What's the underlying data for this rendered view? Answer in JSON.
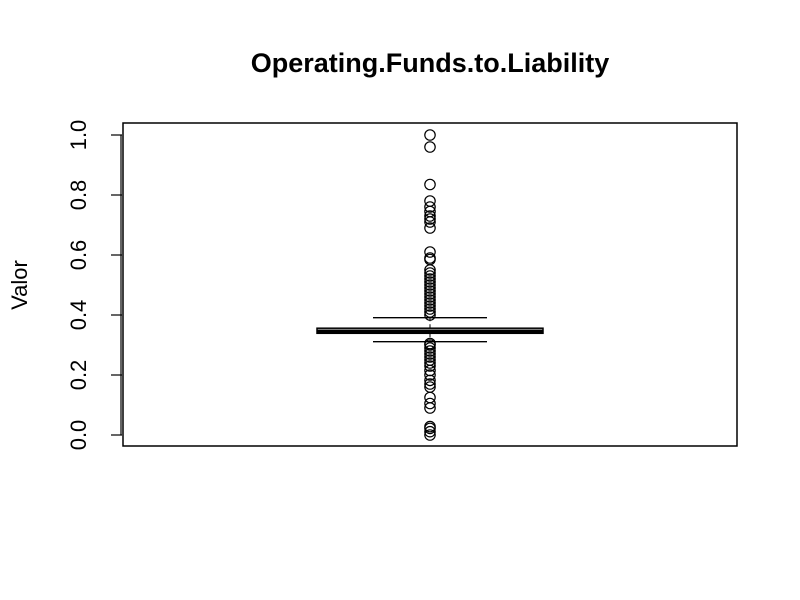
{
  "chart_data": {
    "type": "boxplot",
    "title": "Operating.Funds.to.Liability",
    "xlabel": "",
    "ylabel": "Valor",
    "ylim": [
      0,
      1
    ],
    "y_ticks": [
      "0.0",
      "0.2",
      "0.4",
      "0.6",
      "0.8",
      "1.0"
    ],
    "y_tick_values": [
      0.0,
      0.2,
      0.4,
      0.6,
      0.8,
      1.0
    ],
    "grid": false,
    "box": {
      "whisker_low": 0.311,
      "q1": 0.339,
      "median": 0.345,
      "q3": 0.356,
      "whisker_high": 0.391
    },
    "outliers": [
      0.0,
      0.011,
      0.022,
      0.028,
      0.09,
      0.105,
      0.125,
      0.16,
      0.17,
      0.182,
      0.2,
      0.215,
      0.23,
      0.24,
      0.25,
      0.26,
      0.27,
      0.28,
      0.29,
      0.3,
      0.305,
      0.4,
      0.41,
      0.42,
      0.43,
      0.44,
      0.45,
      0.46,
      0.47,
      0.48,
      0.49,
      0.5,
      0.51,
      0.52,
      0.53,
      0.54,
      0.55,
      0.585,
      0.59,
      0.61,
      0.69,
      0.71,
      0.72,
      0.73,
      0.745,
      0.76,
      0.78,
      0.835,
      0.96,
      1.0
    ]
  }
}
